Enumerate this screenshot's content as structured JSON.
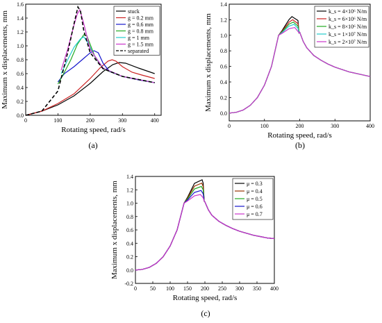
{
  "chart_data": [
    {
      "type": "line",
      "caption": "(a)",
      "xlabel": "Rotating speed, rad/s",
      "ylabel": "Maximum x displacements, mm",
      "xlim": [
        0,
        420
      ],
      "ylim": [
        0,
        1.6
      ],
      "xticks": [
        0,
        100,
        200,
        300,
        400
      ],
      "yticks": [
        0.0,
        0.2,
        0.4,
        0.6,
        0.8,
        1.0,
        1.2,
        1.4,
        1.6
      ],
      "legend": "top-right",
      "series": [
        {
          "name": "stuck",
          "color": "#000000",
          "dash": false,
          "x": [
            0,
            50,
            100,
            150,
            200,
            240,
            270,
            290,
            310,
            350,
            400
          ],
          "y": [
            0.0,
            0.06,
            0.15,
            0.28,
            0.46,
            0.63,
            0.73,
            0.76,
            0.75,
            0.68,
            0.6
          ]
        },
        {
          "name": "g = 0.2 mm",
          "color": "#cc2222",
          "dash": false,
          "x": [
            0,
            50,
            100,
            150,
            200,
            230,
            255,
            268,
            280,
            300,
            330,
            360,
            400
          ],
          "y": [
            0.0,
            0.06,
            0.17,
            0.31,
            0.53,
            0.68,
            0.78,
            0.8,
            0.78,
            0.7,
            0.62,
            0.58,
            0.53
          ]
        },
        {
          "name": "g = 0.6 mm",
          "color": "#1515cc",
          "dash": false,
          "x": [
            100,
            120,
            150,
            180,
            200,
            212,
            225,
            240,
            260,
            300,
            350,
            400
          ],
          "y": [
            0.48,
            0.6,
            0.7,
            0.82,
            0.9,
            0.93,
            0.9,
            0.75,
            0.63,
            0.56,
            0.51,
            0.47
          ]
        },
        {
          "name": "g = 0.8 mm",
          "color": "#22aa22",
          "dash": false,
          "x": [
            100,
            120,
            140,
            160,
            180,
            190,
            200,
            215,
            240,
            300,
            400
          ],
          "y": [
            0.45,
            0.62,
            0.8,
            1.02,
            1.16,
            1.14,
            1.02,
            0.84,
            0.67,
            0.56,
            0.47
          ]
        },
        {
          "name": "g = 1 mm",
          "color": "#22cccc",
          "dash": false,
          "x": [
            110,
            130,
            150,
            170,
            180,
            195,
            210,
            240,
            300,
            400
          ],
          "y": [
            0.6,
            0.8,
            0.98,
            1.1,
            1.13,
            1.03,
            0.88,
            0.68,
            0.56,
            0.47
          ]
        },
        {
          "name": "g = 1.5 mm",
          "color": "#cc33cc",
          "dash": false,
          "x": [
            110,
            130,
            150,
            160,
            168,
            180,
            200,
            240,
            300,
            400
          ],
          "y": [
            0.65,
            0.95,
            1.3,
            1.46,
            1.52,
            1.32,
            0.95,
            0.68,
            0.56,
            0.47
          ]
        },
        {
          "name": "separated",
          "color": "#000000",
          "dash": true,
          "x": [
            0,
            50,
            100,
            130,
            150,
            162,
            170,
            180,
            200,
            240,
            300,
            400
          ],
          "y": [
            0.0,
            0.06,
            0.35,
            0.9,
            1.32,
            1.56,
            1.5,
            1.22,
            0.9,
            0.67,
            0.56,
            0.47
          ]
        }
      ]
    },
    {
      "type": "line",
      "caption": "(b)",
      "xlabel": "Rotating speed, rad/s",
      "ylabel": "Maximum x displacements, mm",
      "xlim": [
        0,
        400
      ],
      "ylim": [
        -0.1,
        1.4
      ],
      "xticks": [
        0,
        100,
        200,
        300,
        400
      ],
      "yticks": [
        0.0,
        0.2,
        0.4,
        0.6,
        0.8,
        1.0,
        1.2,
        1.4
      ],
      "legend": "top-right",
      "base": {
        "x": [
          0,
          20,
          40,
          60,
          80,
          100,
          120,
          140
        ],
        "y": [
          0.0,
          0.01,
          0.04,
          0.1,
          0.2,
          0.36,
          0.6,
          1.0
        ],
        "tail_x": [
          200,
          210,
          220,
          240,
          260,
          280,
          300,
          320,
          340,
          360,
          380,
          400
        ],
        "tail_y": [
          1.04,
          0.92,
          0.84,
          0.74,
          0.68,
          0.63,
          0.59,
          0.56,
          0.53,
          0.51,
          0.49,
          0.47
        ]
      },
      "series": [
        {
          "name": "k_s = 4×10⁶ N/m",
          "color": "#000000",
          "peak_x": 178,
          "peak": 1.24
        },
        {
          "name": "k_s = 6×10⁶ N/m",
          "color": "#cc2222",
          "peak_x": 180,
          "peak": 1.2
        },
        {
          "name": "k_s = 8×10⁶ N/m",
          "color": "#22aa22",
          "peak_x": 182,
          "peak": 1.17
        },
        {
          "name": "k_s = 1×10⁷ N/m",
          "color": "#22cccc",
          "peak_x": 184,
          "peak": 1.14
        },
        {
          "name": "k_s = 2×10⁷ N/m",
          "color": "#cc33cc",
          "peak_x": 186,
          "peak": 1.1
        }
      ]
    },
    {
      "type": "line",
      "caption": "(c)",
      "xlabel": "Rotating speed, rad/s",
      "ylabel": "Maximum x displacements, mm",
      "xlim": [
        0,
        400
      ],
      "ylim": [
        -0.2,
        1.4
      ],
      "xticks": [
        0,
        50,
        100,
        150,
        200,
        250,
        300,
        350,
        400
      ],
      "yticks": [
        -0.2,
        0.0,
        0.2,
        0.4,
        0.6,
        0.8,
        1.0,
        1.2,
        1.4
      ],
      "legend": "top-right",
      "base": {
        "x": [
          0,
          20,
          40,
          60,
          80,
          100,
          120,
          140
        ],
        "y": [
          0.0,
          0.01,
          0.04,
          0.1,
          0.2,
          0.36,
          0.6,
          1.0
        ],
        "tail_x": [
          200,
          210,
          220,
          240,
          260,
          280,
          300,
          320,
          340,
          360,
          380,
          400
        ],
        "tail_y": [
          1.02,
          0.9,
          0.82,
          0.73,
          0.67,
          0.62,
          0.58,
          0.55,
          0.52,
          0.5,
          0.48,
          0.47
        ]
      },
      "series": [
        {
          "name": "μ = 0.3",
          "color": "#000000",
          "peak_x": 192,
          "peak": 1.35
        },
        {
          "name": "μ = 0.4",
          "color": "#993300",
          "peak_x": 191,
          "peak": 1.3
        },
        {
          "name": "μ = 0.5",
          "color": "#22aa22",
          "peak_x": 190,
          "peak": 1.25
        },
        {
          "name": "μ = 0.6",
          "color": "#1515cc",
          "peak_x": 189,
          "peak": 1.19
        },
        {
          "name": "μ = 0.7",
          "color": "#cc33cc",
          "peak_x": 187,
          "peak": 1.13
        }
      ]
    }
  ]
}
